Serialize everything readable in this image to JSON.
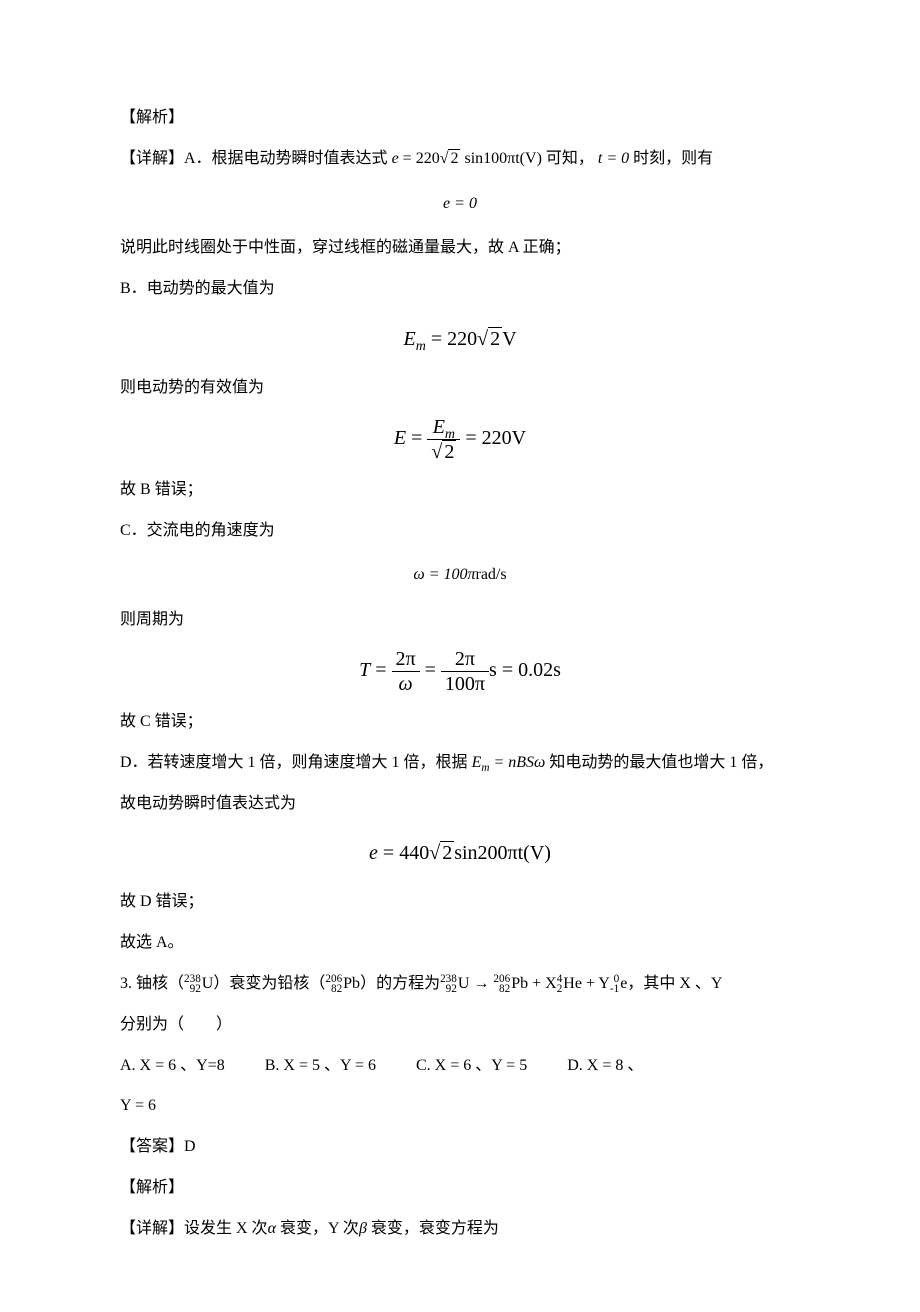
{
  "section1": {
    "header": "【解析】",
    "detail_prefix": "【详解】A．根据电动势瞬时值表达式",
    "expr1_lhs": "e",
    "expr1_eq": " = 220",
    "expr1_sqrt": "2",
    "expr1_rest": " sin100πt(V)",
    "detail_mid": "可知，",
    "expr2": "t = 0",
    "detail_suffix": "时刻，则有",
    "formula_e0": "e = 0",
    "line_a": "说明此时线圈处于中性面，穿过线框的磁通量最大，故 A 正确；",
    "line_b_intro": "B．电动势的最大值为",
    "em_lhs": "E",
    "em_sub": "m",
    "em_eq": " = 220",
    "em_sqrt": "2",
    "em_unit": "V",
    "line_eff": "则电动势的有效值为",
    "erms_lhs": "E",
    "erms_eq": " = ",
    "erms_num_e": "E",
    "erms_num_sub": "m",
    "erms_den": "2",
    "erms_val": " = 220V",
    "line_b_wrong": "故 B 错误；",
    "line_c_intro": "C．交流电的角速度为",
    "omega_eq": "ω = 100π",
    "omega_unit": "rad/s",
    "line_period": "则周期为",
    "T_lhs": "T",
    "T_num1": "2π",
    "T_den1": "ω",
    "T_num2": "2π",
    "T_den2": "100π",
    "T_unit": "s",
    "T_val": " = 0.02s",
    "line_c_wrong": "故 C 错误；",
    "line_d_intro_1": "D．若转速度增大 1 倍，则角速度增大 1 倍，根据",
    "em_nbs": "E",
    "em_nbs_sub": "m",
    "em_nbs_eq": " = nBSω",
    "line_d_intro_2": "知电动势的最大值也增大 1 倍，",
    "line_d_cont": "故电动势瞬时值表达式为",
    "e440_lhs": "e",
    "e440_eq": " = 440",
    "e440_sqrt": "2",
    "e440_rest": "sin200πt(V)",
    "line_d_wrong": "故 D 错误；",
    "line_choose": "故选 A。"
  },
  "question3": {
    "intro_1": "3. 铀核（",
    "u_top": "238",
    "u_bot": "92",
    "u_sym": "U",
    "intro_2": "）衰变为铅核（",
    "pb_top": "206",
    "pb_bot": "82",
    "pb_sym": "Pb",
    "intro_3": "）的方程为",
    "arrow": " → ",
    "plus1": " + X",
    "he_top": "4",
    "he_bot": "2",
    "he_sym": "He",
    "plus2": " + Y",
    "e_top": "0",
    "e_bot": "-1",
    "e_sym": "e",
    "intro_4": "，其中 X 、Y",
    "intro_5": "分别为（　　）",
    "opt_a": "A.  X = 6 、Y=8",
    "opt_b": "B.  X = 5 、Y = 6",
    "opt_c": "C.  X = 6 、Y = 5",
    "opt_d": "D.  X = 8 、",
    "opt_d2": "Y = 6",
    "answer": "【答案】D",
    "analysis": "【解析】",
    "detail": "【详解】设发生 X 次",
    "alpha": "α",
    "detail_mid": " 衰变，Y 次",
    "beta": "β",
    "detail_end": " 衰变，衰变方程为"
  },
  "style": {
    "text_color": "#000000",
    "bg_color": "#ffffff",
    "font_size_body": 16,
    "font_size_formula": 18,
    "font_size_small_formula": 14
  }
}
